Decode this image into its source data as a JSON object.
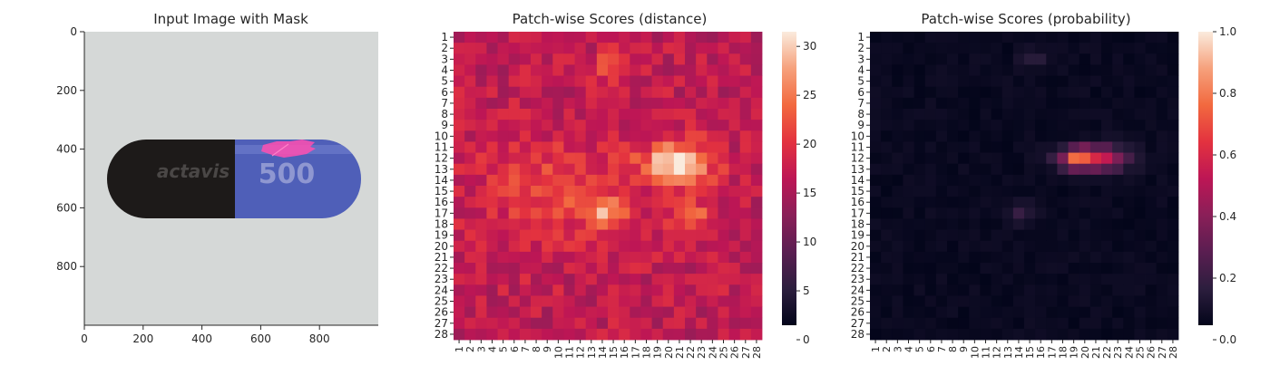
{
  "chart_data": [
    {
      "type": "image",
      "title": "Input Image with Mask",
      "xticks": [
        "0",
        "200",
        "400",
        "600",
        "800"
      ],
      "yticks": [
        "0",
        "200",
        "400",
        "600",
        "800"
      ],
      "xlim": [
        0,
        1000
      ],
      "ylim": [
        1000,
        0
      ],
      "image": {
        "background": "#d5d8d7",
        "capsule": {
          "left_color": "#1d1a19",
          "right_color": "#4f5fb8",
          "imprint_left": "actavis",
          "imprint_right": "500",
          "mask_color": "#ff4fb0"
        }
      }
    },
    {
      "type": "heatmap",
      "title": "Patch-wise Scores (distance)",
      "rows": 28,
      "cols": 28,
      "row_labels": [
        "1",
        "2",
        "3",
        "4",
        "5",
        "6",
        "7",
        "8",
        "9",
        "10",
        "11",
        "12",
        "13",
        "14",
        "15",
        "16",
        "17",
        "18",
        "19",
        "20",
        "21",
        "22",
        "23",
        "24",
        "25",
        "26",
        "27",
        "28"
      ],
      "col_labels": [
        "1",
        "2",
        "3",
        "4",
        "5",
        "6",
        "7",
        "8",
        "9",
        "10",
        "11",
        "12",
        "13",
        "14",
        "15",
        "16",
        "17",
        "18",
        "19",
        "20",
        "21",
        "22",
        "23",
        "24",
        "25",
        "26",
        "27",
        "28"
      ],
      "colorbar": {
        "min": 0,
        "max": 31.5,
        "ticks": [
          "0",
          "5",
          "10",
          "15",
          "20",
          "25",
          "30"
        ],
        "tick_values": [
          0,
          5,
          10,
          15,
          20,
          25,
          30
        ]
      },
      "base_value": 16,
      "hotspots": [
        {
          "row": 12.5,
          "col": 21.0,
          "value": 31,
          "sigma_r": 1.4,
          "sigma_c": 2.2
        },
        {
          "row": 17.0,
          "col": 14.5,
          "value": 26,
          "sigma_r": 0.9,
          "sigma_c": 1.0
        },
        {
          "row": 17.5,
          "col": 22.5,
          "value": 23,
          "sigma_r": 1.2,
          "sigma_c": 1.4
        },
        {
          "row": 3.5,
          "col": 15.0,
          "value": 22,
          "sigma_r": 1.0,
          "sigma_c": 1.3
        },
        {
          "row": 15.0,
          "col": 10.0,
          "value": 21,
          "sigma_r": 3.5,
          "sigma_c": 5.0
        }
      ]
    },
    {
      "type": "heatmap",
      "title": "Patch-wise Scores (probability)",
      "rows": 28,
      "cols": 28,
      "row_labels": [
        "1",
        "2",
        "3",
        "4",
        "5",
        "6",
        "7",
        "8",
        "9",
        "10",
        "11",
        "12",
        "13",
        "14",
        "15",
        "16",
        "17",
        "18",
        "19",
        "20",
        "21",
        "22",
        "23",
        "24",
        "25",
        "26",
        "27",
        "28"
      ],
      "col_labels": [
        "1",
        "2",
        "3",
        "4",
        "5",
        "6",
        "7",
        "8",
        "9",
        "10",
        "11",
        "12",
        "13",
        "14",
        "15",
        "16",
        "17",
        "18",
        "19",
        "20",
        "21",
        "22",
        "23",
        "24",
        "25",
        "26",
        "27",
        "28"
      ],
      "colorbar": {
        "min": 0,
        "max": 1,
        "ticks": [
          "0.0",
          "0.2",
          "0.4",
          "0.6",
          "0.8",
          "1.0"
        ],
        "tick_values": [
          0,
          0.2,
          0.4,
          0.6,
          0.8,
          1.0
        ]
      },
      "base_value": 0.02,
      "hotspots": [
        {
          "row": 12.0,
          "col": 21.0,
          "value": 0.55,
          "sigma_r": 0.8,
          "sigma_c": 2.0
        },
        {
          "row": 12.0,
          "col": 19.0,
          "value": 0.35,
          "sigma_r": 0.6,
          "sigma_c": 0.9
        },
        {
          "row": 17.0,
          "col": 14.3,
          "value": 0.15,
          "sigma_r": 0.7,
          "sigma_c": 0.8
        },
        {
          "row": 3.0,
          "col": 15.5,
          "value": 0.12,
          "sigma_r": 0.6,
          "sigma_c": 1.0
        }
      ]
    }
  ]
}
